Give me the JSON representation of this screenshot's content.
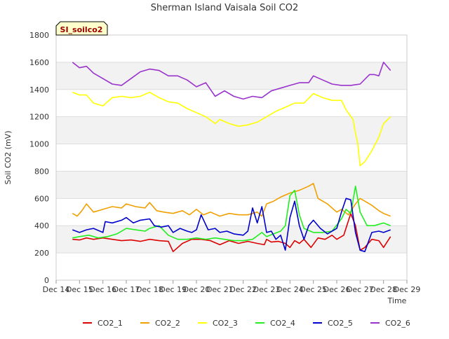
{
  "chart_data": {
    "type": "line",
    "title": "Sherman Island Vaisala Soil CO2",
    "tag_label": "SI_soilco2",
    "xlabel": "Time",
    "ylabel": "Soil CO2 (mV)",
    "ylim": [
      0,
      1800
    ],
    "xlim": [
      14,
      29
    ],
    "yticks": [
      0,
      200,
      400,
      600,
      800,
      1000,
      1200,
      1400,
      1600,
      1800
    ],
    "xticks": [
      {
        "v": 14,
        "label": "Dec 14"
      },
      {
        "v": 15,
        "label": "Dec 15"
      },
      {
        "v": 16,
        "label": "Dec 16"
      },
      {
        "v": 17,
        "label": "Dec 17"
      },
      {
        "v": 18,
        "label": "Dec 18"
      },
      {
        "v": 19,
        "label": "Dec 19"
      },
      {
        "v": 20,
        "label": "Dec 20"
      },
      {
        "v": 21,
        "label": "Dec 21"
      },
      {
        "v": 22,
        "label": "Dec 22"
      },
      {
        "v": 23,
        "label": "Dec 23"
      },
      {
        "v": 24,
        "label": "Dec 24"
      },
      {
        "v": 25,
        "label": "Dec 25"
      },
      {
        "v": 26,
        "label": "Dec 26"
      },
      {
        "v": 27,
        "label": "Dec 27"
      },
      {
        "v": 28,
        "label": "Dec 28"
      },
      {
        "v": 29,
        "label": "Dec 29"
      }
    ],
    "grid": true,
    "legend_position": "bottom",
    "x_unit": "day of December",
    "series": [
      {
        "name": "CO2_1",
        "color": "#dd0000",
        "x": [
          14.7,
          15.0,
          15.3,
          15.6,
          16.0,
          16.4,
          16.8,
          17.2,
          17.6,
          18.0,
          18.4,
          18.8,
          19.0,
          19.4,
          19.8,
          20.2,
          20.6,
          21.0,
          21.4,
          21.8,
          22.2,
          22.6,
          22.9,
          23.0,
          23.2,
          23.5,
          23.8,
          24.0,
          24.2,
          24.4,
          24.6,
          24.9,
          25.2,
          25.5,
          25.8,
          26.0,
          26.3,
          26.6,
          26.8,
          27.0,
          27.2,
          27.5,
          27.8,
          28.0,
          28.3
        ],
        "values": [
          300,
          295,
          310,
          300,
          310,
          300,
          290,
          295,
          285,
          300,
          290,
          285,
          210,
          270,
          300,
          300,
          290,
          260,
          290,
          270,
          285,
          270,
          260,
          300,
          280,
          285,
          270,
          240,
          290,
          270,
          300,
          240,
          310,
          300,
          330,
          300,
          330,
          490,
          400,
          220,
          240,
          300,
          290,
          240,
          320
        ]
      },
      {
        "name": "CO2_2",
        "color": "#f0a000",
        "x": [
          14.7,
          14.9,
          15.1,
          15.3,
          15.6,
          16.0,
          16.4,
          16.8,
          17.0,
          17.4,
          17.8,
          18.0,
          18.3,
          18.6,
          19.0,
          19.4,
          19.7,
          20.0,
          20.3,
          20.6,
          21.0,
          21.4,
          21.8,
          22.2,
          22.6,
          22.8,
          23.0,
          23.3,
          23.6,
          24.0,
          24.4,
          24.8,
          25.0,
          25.2,
          25.6,
          26.0,
          26.2,
          26.5,
          26.8,
          27.0,
          27.2,
          27.5,
          27.8,
          28.0,
          28.3
        ],
        "values": [
          490,
          470,
          510,
          560,
          500,
          520,
          540,
          530,
          560,
          540,
          530,
          570,
          510,
          500,
          490,
          510,
          480,
          520,
          480,
          500,
          470,
          490,
          480,
          480,
          500,
          470,
          560,
          580,
          610,
          640,
          660,
          690,
          710,
          600,
          560,
          500,
          520,
          480,
          560,
          600,
          580,
          550,
          510,
          490,
          470
        ]
      },
      {
        "name": "CO2_3",
        "color": "#ffff00",
        "x": [
          14.7,
          15.0,
          15.3,
          15.6,
          16.0,
          16.4,
          16.8,
          17.2,
          17.6,
          18.0,
          18.4,
          18.8,
          19.2,
          19.6,
          20.0,
          20.4,
          20.8,
          21.0,
          21.4,
          21.8,
          22.2,
          22.6,
          23.0,
          23.4,
          23.8,
          24.2,
          24.6,
          25.0,
          25.4,
          25.8,
          26.2,
          26.4,
          26.7,
          26.8,
          26.9,
          27.0,
          27.2,
          27.5,
          27.8,
          28.0,
          28.3
        ],
        "values": [
          1380,
          1360,
          1360,
          1300,
          1280,
          1340,
          1350,
          1340,
          1350,
          1380,
          1340,
          1310,
          1300,
          1260,
          1230,
          1200,
          1150,
          1180,
          1150,
          1130,
          1140,
          1160,
          1200,
          1240,
          1270,
          1300,
          1300,
          1370,
          1340,
          1320,
          1320,
          1250,
          1180,
          1080,
          1000,
          840,
          870,
          950,
          1050,
          1150,
          1200
        ]
      },
      {
        "name": "CO2_4",
        "color": "#22ee22",
        "x": [
          14.7,
          15.0,
          15.4,
          15.8,
          16.2,
          16.6,
          17.0,
          17.4,
          17.8,
          18.0,
          18.4,
          18.8,
          19.2,
          19.6,
          20.0,
          20.4,
          20.8,
          21.2,
          21.6,
          22.0,
          22.4,
          22.8,
          23.0,
          23.3,
          23.6,
          23.8,
          24.0,
          24.2,
          24.4,
          24.6,
          25.0,
          25.4,
          25.8,
          26.2,
          26.4,
          26.6,
          26.8,
          27.0,
          27.3,
          27.6,
          28.0,
          28.3
        ],
        "values": [
          310,
          320,
          330,
          310,
          320,
          340,
          380,
          370,
          360,
          380,
          400,
          330,
          300,
          300,
          310,
          300,
          310,
          300,
          290,
          290,
          300,
          350,
          320,
          340,
          360,
          400,
          620,
          660,
          480,
          380,
          350,
          350,
          360,
          450,
          520,
          490,
          690,
          500,
          400,
          400,
          420,
          400
        ]
      },
      {
        "name": "CO2_5",
        "color": "#0000cc",
        "x": [
          14.7,
          15.0,
          15.3,
          15.6,
          16.0,
          16.1,
          16.4,
          16.8,
          17.0,
          17.3,
          17.6,
          18.0,
          18.2,
          18.5,
          18.8,
          19.0,
          19.3,
          19.6,
          19.8,
          20.0,
          20.2,
          20.5,
          20.8,
          21.0,
          21.3,
          21.6,
          22.0,
          22.2,
          22.4,
          22.6,
          22.8,
          23.0,
          23.2,
          23.4,
          23.6,
          23.8,
          24.0,
          24.2,
          24.4,
          24.6,
          24.8,
          25.0,
          25.3,
          25.6,
          26.0,
          26.2,
          26.4,
          26.6,
          26.8,
          27.0,
          27.2,
          27.5,
          27.8,
          28.0,
          28.3
        ],
        "values": [
          370,
          350,
          370,
          380,
          350,
          430,
          420,
          440,
          460,
          420,
          440,
          450,
          400,
          390,
          400,
          350,
          380,
          360,
          350,
          370,
          480,
          370,
          380,
          350,
          360,
          340,
          330,
          360,
          530,
          420,
          540,
          350,
          360,
          300,
          330,
          220,
          460,
          580,
          400,
          300,
          400,
          440,
          380,
          340,
          380,
          500,
          600,
          590,
          350,
          220,
          210,
          350,
          360,
          350,
          370
        ]
      },
      {
        "name": "CO2_6",
        "color": "#9933cc",
        "x": [
          14.7,
          15.0,
          15.3,
          15.6,
          16.0,
          16.4,
          16.8,
          17.2,
          17.6,
          18.0,
          18.4,
          18.8,
          19.2,
          19.6,
          20.0,
          20.4,
          20.8,
          21.2,
          21.6,
          22.0,
          22.4,
          22.8,
          23.2,
          23.6,
          24.0,
          24.4,
          24.8,
          25.0,
          25.4,
          25.8,
          26.2,
          26.6,
          27.0,
          27.4,
          27.6,
          27.8,
          28.0,
          28.3
        ],
        "values": [
          1600,
          1560,
          1570,
          1520,
          1480,
          1440,
          1430,
          1480,
          1530,
          1550,
          1540,
          1500,
          1500,
          1470,
          1420,
          1450,
          1350,
          1390,
          1350,
          1330,
          1350,
          1340,
          1390,
          1410,
          1430,
          1450,
          1450,
          1500,
          1470,
          1440,
          1430,
          1430,
          1440,
          1510,
          1510,
          1500,
          1600,
          1540
        ]
      }
    ]
  }
}
